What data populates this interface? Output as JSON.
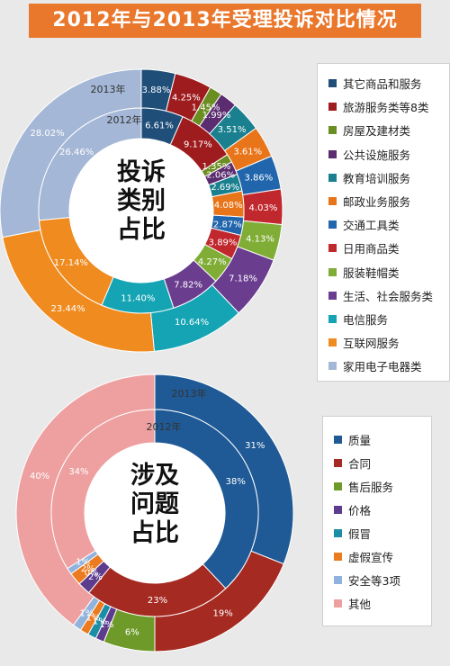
{
  "title": "2012年与2013年受理投诉对比情况",
  "chart_data": [
    {
      "type": "donut",
      "title": "投诉类别占比",
      "center_label_lines": [
        "投诉",
        "类别",
        "占比"
      ],
      "categories": [
        "其它商品和服务",
        "旅游服务类等8类",
        "房屋及建材类",
        "公共设施服务",
        "教育培训服务",
        "邮政业务服务",
        "交通工具类",
        "日用商品类",
        "服装鞋帽类",
        "生活、社会服务类",
        "电信服务",
        "互联网服务",
        "家用电子电器类"
      ],
      "colors": [
        "#1f4e79",
        "#9e1b1e",
        "#6b8e23",
        "#5b2c6f",
        "#1a7f8e",
        "#e8751a",
        "#2166ac",
        "#c0282e",
        "#7fad36",
        "#6a3d8f",
        "#14a4b4",
        "#ef8b1f",
        "#a4b7d6"
      ],
      "series": [
        {
          "name": "2013年",
          "values": [
            3.88,
            4.25,
            1.45,
            1.99,
            3.51,
            3.61,
            3.86,
            4.03,
            4.13,
            7.18,
            10.64,
            23.44,
            28.02
          ],
          "labels": [
            "3.88%",
            "4.25%",
            "1.45%",
            "1.99%",
            "3.51%",
            "3.61%",
            "3.86%",
            "4.03%",
            "4.13%",
            "7.18%",
            "10.64%",
            "23.44%",
            "28.02%"
          ]
        },
        {
          "name": "2012年",
          "values": [
            6.61,
            9.17,
            1.35,
            2.06,
            2.69,
            4.08,
            2.87,
            3.89,
            4.27,
            7.82,
            11.4,
            17.14,
            26.46
          ],
          "labels": [
            "6.61%",
            "9.17%",
            "1.35%",
            "2.06%",
            "2.69%",
            "4.08%",
            "2.87%",
            "3.89%",
            "4.27%",
            "7.82%",
            "11.40%",
            "17.14%",
            "26.46%"
          ]
        }
      ]
    },
    {
      "type": "donut",
      "title": "涉及问题占比",
      "center_label_lines": [
        "涉及",
        "问题",
        "占比"
      ],
      "categories": [
        "质量",
        "合同",
        "售后服务",
        "价格",
        "假冒",
        "虚假宣传",
        "安全等3项",
        "其他"
      ],
      "colors": [
        "#1f5a96",
        "#a52a22",
        "#6e9a2a",
        "#5d3c8e",
        "#1b8ea6",
        "#ec7a1e",
        "#8fb3dd",
        "#eea0a0"
      ],
      "series": [
        {
          "name": "2013年",
          "values": [
            31,
            19,
            6,
            1,
            1,
            1,
            1,
            40
          ],
          "labels": [
            "31%",
            "19%",
            "6%",
            "1%",
            "1%",
            "1%",
            "1%",
            "40%"
          ]
        },
        {
          "name": "2012年",
          "values": [
            38,
            23,
            0,
            2,
            0,
            2,
            1,
            34
          ],
          "labels": [
            "38%",
            "23%",
            "",
            "2%",
            "0%",
            "2%",
            "1%",
            "34%"
          ]
        }
      ]
    }
  ]
}
